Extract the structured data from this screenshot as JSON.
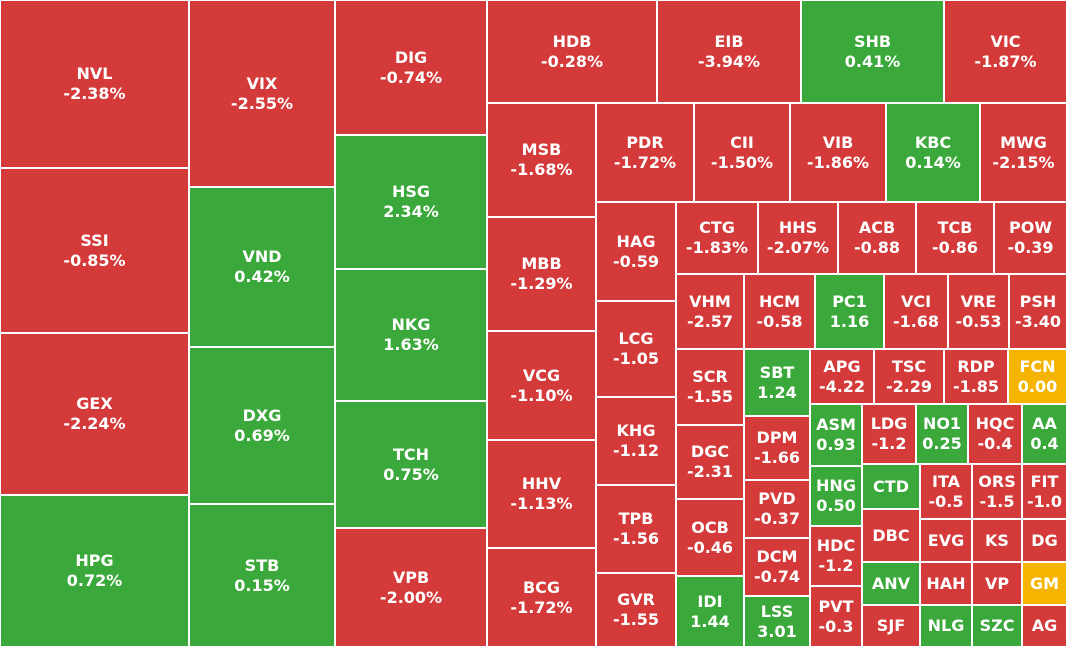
{
  "colors": {
    "down": "#d43a3a",
    "up": "#3aa83a",
    "ref": "#f5b400"
  },
  "chart_data": {
    "type": "treemap",
    "title": "",
    "tiles": [
      {
        "ticker": "NVL",
        "change": "-2.38%",
        "status": "down"
      },
      {
        "ticker": "SSI",
        "change": "-0.85%",
        "status": "down"
      },
      {
        "ticker": "GEX",
        "change": "-2.24%",
        "status": "down"
      },
      {
        "ticker": "HPG",
        "change": "0.72%",
        "status": "up"
      },
      {
        "ticker": "VIX",
        "change": "-2.55%",
        "status": "down"
      },
      {
        "ticker": "VND",
        "change": "0.42%",
        "status": "up"
      },
      {
        "ticker": "DXG",
        "change": "0.69%",
        "status": "up"
      },
      {
        "ticker": "STB",
        "change": "0.15%",
        "status": "up"
      },
      {
        "ticker": "DIG",
        "change": "-0.74%",
        "status": "down"
      },
      {
        "ticker": "HSG",
        "change": "2.34%",
        "status": "up"
      },
      {
        "ticker": "NKG",
        "change": "1.63%",
        "status": "up"
      },
      {
        "ticker": "TCH",
        "change": "0.75%",
        "status": "up"
      },
      {
        "ticker": "VPB",
        "change": "-2.00%",
        "status": "down"
      },
      {
        "ticker": "HDB",
        "change": "-0.28%",
        "status": "down"
      },
      {
        "ticker": "EIB",
        "change": "-3.94%",
        "status": "down"
      },
      {
        "ticker": "SHB",
        "change": "0.41%",
        "status": "up"
      },
      {
        "ticker": "VIC",
        "change": "-1.87%",
        "status": "down"
      },
      {
        "ticker": "MSB",
        "change": "-1.68%",
        "status": "down"
      },
      {
        "ticker": "MBB",
        "change": "-1.29%",
        "status": "down"
      },
      {
        "ticker": "VCG",
        "change": "-1.10%",
        "status": "down"
      },
      {
        "ticker": "HHV",
        "change": "-1.13%",
        "status": "down"
      },
      {
        "ticker": "BCG",
        "change": "-1.72%",
        "status": "down"
      },
      {
        "ticker": "PDR",
        "change": "-1.72%",
        "status": "down"
      },
      {
        "ticker": "CII",
        "change": "-1.50%",
        "status": "down"
      },
      {
        "ticker": "VIB",
        "change": "-1.86%",
        "status": "down"
      },
      {
        "ticker": "KBC",
        "change": "0.14%",
        "status": "up"
      },
      {
        "ticker": "MWG",
        "change": "-2.15%",
        "status": "down"
      },
      {
        "ticker": "HAG",
        "change": "-0.59",
        "status": "down"
      },
      {
        "ticker": "LCG",
        "change": "-1.05",
        "status": "down"
      },
      {
        "ticker": "KHG",
        "change": "-1.12",
        "status": "down"
      },
      {
        "ticker": "TPB",
        "change": "-1.56",
        "status": "down"
      },
      {
        "ticker": "GVR",
        "change": "-1.55",
        "status": "down"
      },
      {
        "ticker": "CTG",
        "change": "-1.83%",
        "status": "down"
      },
      {
        "ticker": "HHS",
        "change": "-2.07%",
        "status": "down"
      },
      {
        "ticker": "ACB",
        "change": "-0.88",
        "status": "down"
      },
      {
        "ticker": "TCB",
        "change": "-0.86",
        "status": "down"
      },
      {
        "ticker": "POW",
        "change": "-0.39",
        "status": "down"
      },
      {
        "ticker": "VHM",
        "change": "-2.57",
        "status": "down"
      },
      {
        "ticker": "HCM",
        "change": "-0.58",
        "status": "down"
      },
      {
        "ticker": "PC1",
        "change": "1.16",
        "status": "up"
      },
      {
        "ticker": "VCI",
        "change": "-1.68",
        "status": "down"
      },
      {
        "ticker": "VRE",
        "change": "-0.53",
        "status": "down"
      },
      {
        "ticker": "PSH",
        "change": "-3.40",
        "status": "down"
      },
      {
        "ticker": "SCR",
        "change": "-1.55",
        "status": "down"
      },
      {
        "ticker": "DGC",
        "change": "-2.31",
        "status": "down"
      },
      {
        "ticker": "OCB",
        "change": "-0.46",
        "status": "down"
      },
      {
        "ticker": "IDI",
        "change": "1.44",
        "status": "up"
      },
      {
        "ticker": "SBT",
        "change": "1.24",
        "status": "up"
      },
      {
        "ticker": "DPM",
        "change": "-1.66",
        "status": "down"
      },
      {
        "ticker": "PVD",
        "change": "-0.37",
        "status": "down"
      },
      {
        "ticker": "DCM",
        "change": "-0.74",
        "status": "down"
      },
      {
        "ticker": "LSS",
        "change": "3.01",
        "status": "up"
      },
      {
        "ticker": "APG",
        "change": "-4.22",
        "status": "down"
      },
      {
        "ticker": "TSC",
        "change": "-2.29",
        "status": "down"
      },
      {
        "ticker": "RDP",
        "change": "-1.85",
        "status": "down"
      },
      {
        "ticker": "FCN",
        "change": "0.00",
        "status": "ref"
      },
      {
        "ticker": "ASM",
        "change": "0.93",
        "status": "up"
      },
      {
        "ticker": "HNG",
        "change": "0.50",
        "status": "up"
      },
      {
        "ticker": "HDC",
        "change": "-1.2",
        "status": "down"
      },
      {
        "ticker": "PVT",
        "change": "-0.3",
        "status": "down"
      },
      {
        "ticker": "LDG",
        "change": "-1.2",
        "status": "down"
      },
      {
        "ticker": "NO1",
        "change": "0.25",
        "status": "up"
      },
      {
        "ticker": "HQC",
        "change": "-0.4",
        "status": "down"
      },
      {
        "ticker": "AA",
        "change": "0.4",
        "status": "up"
      },
      {
        "ticker": "CTD",
        "change": "",
        "status": "up"
      },
      {
        "ticker": "ITA",
        "change": "-0.5",
        "status": "down"
      },
      {
        "ticker": "ORS",
        "change": "-1.5",
        "status": "down"
      },
      {
        "ticker": "FIT",
        "change": "-1.0",
        "status": "down"
      },
      {
        "ticker": "DBC",
        "change": "",
        "status": "down"
      },
      {
        "ticker": "EVG",
        "change": "",
        "status": "down"
      },
      {
        "ticker": "KS",
        "change": "",
        "status": "down"
      },
      {
        "ticker": "DG",
        "change": "",
        "status": "down"
      },
      {
        "ticker": "ANV",
        "change": "",
        "status": "up"
      },
      {
        "ticker": "HAH",
        "change": "",
        "status": "down"
      },
      {
        "ticker": "VP",
        "change": "",
        "status": "down"
      },
      {
        "ticker": "GM",
        "change": "",
        "status": "ref"
      },
      {
        "ticker": "SJF",
        "change": "",
        "status": "down"
      },
      {
        "ticker": "NLG",
        "change": "",
        "status": "up"
      },
      {
        "ticker": "SZC",
        "change": "",
        "status": "up"
      },
      {
        "ticker": "AG",
        "change": "",
        "status": "down"
      }
    ]
  }
}
